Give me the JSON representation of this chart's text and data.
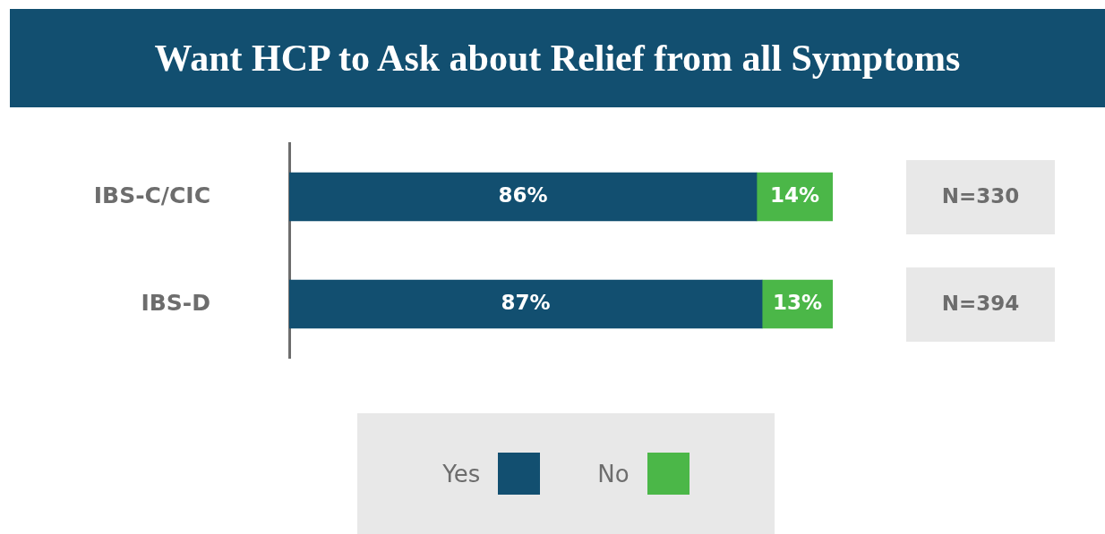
{
  "chart_data": {
    "type": "bar",
    "title": "Want HCP to Ask about Relief from all Symptoms",
    "orientation": "horizontal",
    "stacked": true,
    "categories": [
      "IBS-C/CIC",
      "IBS-D"
    ],
    "series": [
      {
        "name": "Yes",
        "color": "#124f70",
        "values": [
          86,
          87
        ],
        "value_labels": [
          "86%",
          "87%"
        ]
      },
      {
        "name": "No",
        "color": "#4bb748",
        "values": [
          14,
          13
        ],
        "value_labels": [
          "14%",
          "13%"
        ]
      }
    ],
    "tick_labels": "y",
    "legend": "bottom",
    "annotations": [
      "N=330",
      "N=394"
    ]
  }
}
